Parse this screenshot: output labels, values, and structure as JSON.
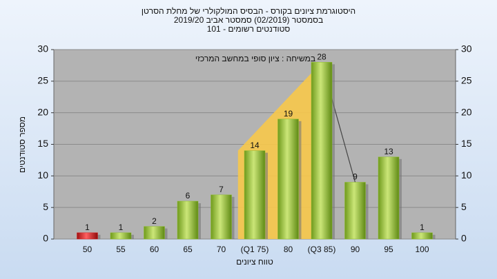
{
  "chart_data": {
    "type": "bar",
    "title": "היסטוגרמת ציונים בקורס - הבסיס המולקולרי של מחלת הסרטן",
    "subtitle": "בסמסטר  (02/2019)  סמסטר אביב 2019/20",
    "subtitle2": "סטודנטים רשומים - 101",
    "annotation": "במשיחה : ציון סופי במחשב המרכזי",
    "x_label": "טווח ציונים",
    "y_label": "מספר סטודנטים",
    "categories": [
      "50",
      "55",
      "60",
      "65",
      "70",
      "(Q1 75)",
      "80",
      "(Q3 85)",
      "90",
      "95",
      "100"
    ],
    "values": [
      1,
      1,
      2,
      6,
      7,
      14,
      19,
      28,
      9,
      13,
      1
    ],
    "colors": [
      "#d62020",
      "#8fbf2f",
      "#8fbf2f",
      "#8fbf2f",
      "#8fbf2f",
      "#8fbf2f",
      "#8fbf2f",
      "#8fbf2f",
      "#8fbf2f",
      "#8fbf2f",
      "#8fbf2f"
    ],
    "ylim": [
      0,
      30
    ],
    "yticks": [
      0,
      5,
      10,
      15,
      20,
      25,
      30
    ],
    "grid": true
  }
}
